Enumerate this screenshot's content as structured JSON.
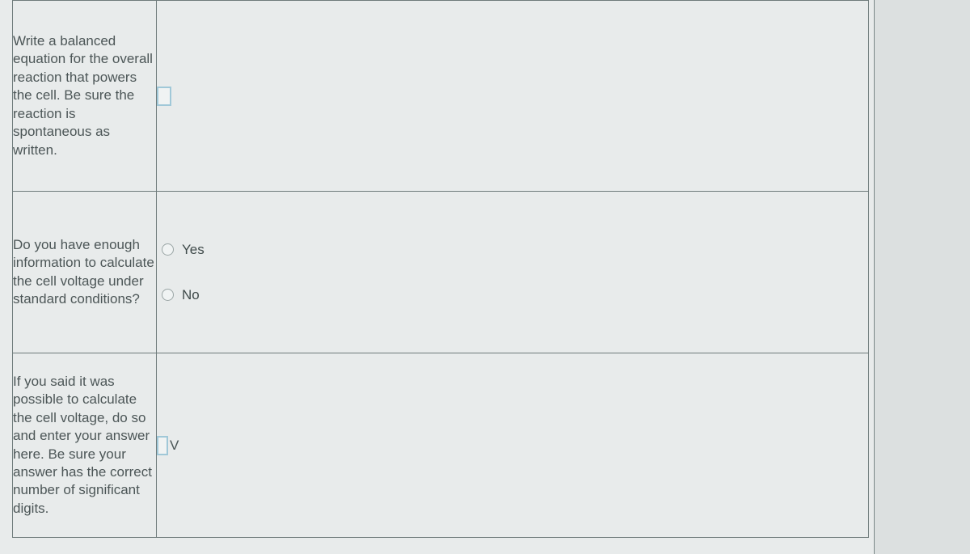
{
  "rows": {
    "equation": {
      "prompt": "Write a balanced equation for the overall reaction that powers the cell. Be sure the reaction is spontaneous as written."
    },
    "enough_info": {
      "prompt": "Do you have enough information to calculate the cell voltage under standard conditions?",
      "option_yes": "Yes",
      "option_no": "No"
    },
    "voltage": {
      "prompt": "If you said it was possible to calculate the cell voltage, do so and enter your answer here. Be sure your answer has the correct number of significant digits.",
      "unit": "V"
    }
  },
  "colors": {
    "page_bg": "#dce0e0",
    "sheet_bg": "#e8ebeb",
    "border": "#6f7b7b",
    "text": "#4a5556",
    "input_border": "#a0c8d8"
  }
}
